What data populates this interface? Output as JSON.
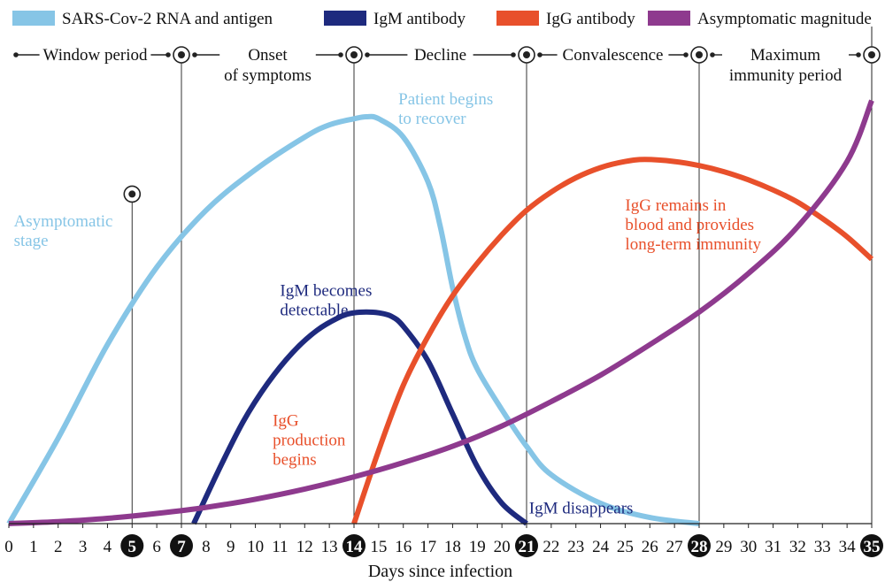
{
  "chart_data": {
    "type": "line",
    "xlabel": "Days since infection",
    "xlim": [
      0,
      35
    ],
    "ylim": [
      0,
      100
    ],
    "x_ticks": [
      0,
      1,
      2,
      3,
      4,
      5,
      6,
      7,
      8,
      9,
      10,
      11,
      12,
      13,
      14,
      15,
      16,
      17,
      18,
      19,
      20,
      21,
      22,
      23,
      24,
      25,
      26,
      27,
      28,
      29,
      30,
      31,
      32,
      33,
      34,
      35
    ],
    "highlighted_ticks": [
      5,
      7,
      14,
      21,
      28,
      35
    ],
    "legend_position": "top",
    "series": [
      {
        "name": "SARS-Cov-2 RNA and antigen",
        "color": "#86c5e6",
        "x": [
          0,
          2,
          4,
          6,
          8,
          10,
          12,
          13,
          14,
          14.5,
          15,
          16,
          17,
          17.5,
          18,
          18.5,
          19,
          20,
          21,
          22,
          24,
          26,
          28
        ],
        "y": [
          0,
          21,
          44,
          63,
          77,
          87,
          95,
          98,
          99.5,
          100,
          99.5,
          95,
          84,
          73,
          58,
          46,
          38,
          28,
          19,
          12,
          5,
          1.5,
          0
        ]
      },
      {
        "name": "IgM antibody",
        "color": "#1e2a7e",
        "x": [
          7.5,
          8.5,
          9.5,
          10.5,
          11.5,
          12.5,
          13.5,
          14,
          14.5,
          15,
          15.5,
          16,
          17,
          18,
          19,
          20,
          21
        ],
        "y": [
          0,
          13,
          25,
          34.5,
          42,
          47.5,
          51,
          51.8,
          52,
          51.8,
          51,
          48.5,
          40,
          27,
          14,
          5,
          0
        ]
      },
      {
        "name": "IgG antibody",
        "color": "#e8502b",
        "x": [
          14,
          15,
          16,
          17,
          18,
          19,
          20,
          21,
          22,
          23,
          24,
          25,
          25.8,
          27,
          28,
          29,
          30,
          31,
          32,
          33,
          34,
          35
        ],
        "y": [
          0,
          18,
          34,
          46,
          56,
          64,
          71,
          77,
          81.5,
          85,
          87.5,
          89,
          89.5,
          89,
          88,
          86.5,
          84.5,
          82,
          79,
          75,
          70.5,
          65
        ]
      },
      {
        "name": "Asymptomatic magnitude",
        "color": "#8e3a8e",
        "x": [
          0,
          2,
          4,
          6,
          8,
          10,
          12,
          14,
          16,
          18,
          20,
          22,
          24,
          26,
          28,
          30,
          32,
          34,
          35
        ],
        "y": [
          0,
          0.5,
          1.3,
          2.5,
          4,
          6,
          8.5,
          11.5,
          15,
          19,
          24,
          30,
          36.5,
          44,
          52,
          61.5,
          73,
          89,
          104
        ]
      }
    ],
    "phases": [
      "Window period",
      "Onset\nof symptoms",
      "Decline",
      "Convalescence",
      "Maximum\nimmunity period"
    ],
    "phase_boundaries": [
      0,
      7,
      14,
      21,
      28,
      35
    ],
    "annotations": [
      {
        "text": "Asymptomatic\nstage",
        "color": "#86c5e6",
        "x": 0.2,
        "y": 73
      },
      {
        "text": "Patient begins\nto recover",
        "color": "#86c5e6",
        "x": 15.8,
        "y": 103
      },
      {
        "text": "IgM becomes\ndetectable",
        "color": "#1e2a7e",
        "x": 11,
        "y": 56
      },
      {
        "text": "IgG\nproduction\nbegins",
        "color": "#e8502b",
        "x": 10.7,
        "y": 24
      },
      {
        "text": "IgG remains in\nblood and provides\nlong-term immunity",
        "color": "#e8502b",
        "x": 25,
        "y": 77
      },
      {
        "text": "IgM disappears",
        "color": "#1e2a7e",
        "x": 21.1,
        "y": 2.5
      }
    ],
    "markers": [
      {
        "x": 5,
        "y": 81
      }
    ]
  }
}
